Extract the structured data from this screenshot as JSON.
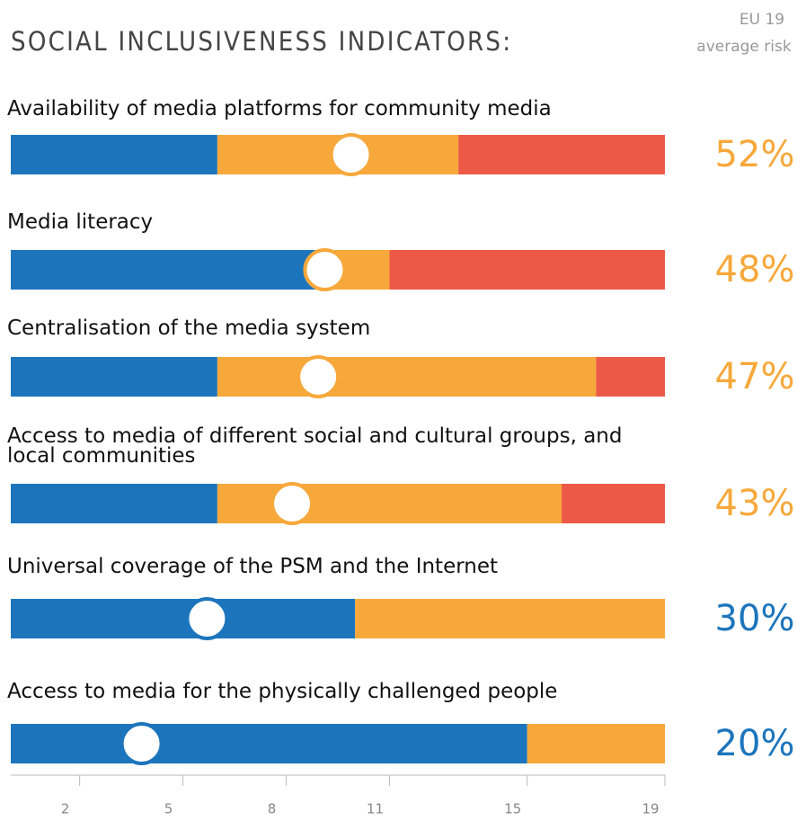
{
  "chart_data": {
    "type": "stacked_bar",
    "title": "SOCIAL INCLUSIVENESS INDICATORS:",
    "marker_title": "EU 19",
    "marker_subtitle": "average risk",
    "categories": [
      "Availability of media platforms for community media",
      "Media literacy",
      "Centralisation of the media system",
      "Access to media of different social and cultural groups, and local communities",
      "Universal coverage of the PSM and the Internet",
      "Access to media for the physically challenged people"
    ],
    "series": [
      {
        "color": "#1c75bc",
        "values": [
          6,
          9,
          6,
          6,
          10,
          15
        ]
      },
      {
        "color": "#f7a83b",
        "values": [
          7,
          2,
          11,
          10,
          9,
          4
        ]
      },
      {
        "color": "#ec5a47",
        "values": [
          6,
          8,
          2,
          3,
          0,
          0
        ]
      }
    ],
    "risk": [
      52,
      48,
      47,
      43,
      30,
      20
    ],
    "risk_labels": [
      "52%",
      "48%",
      "47%",
      "43%",
      "30%",
      "20%"
    ],
    "risk_colors": [
      "#f7a83b",
      "#f7a83b",
      "#f7a83b",
      "#f7a83b",
      "#1c75bc",
      "#1c75bc"
    ],
    "risk_lim": [
      0,
      100
    ],
    "xlim": [
      0,
      19
    ],
    "xticks": [
      2,
      5,
      8,
      11,
      15,
      19
    ]
  }
}
